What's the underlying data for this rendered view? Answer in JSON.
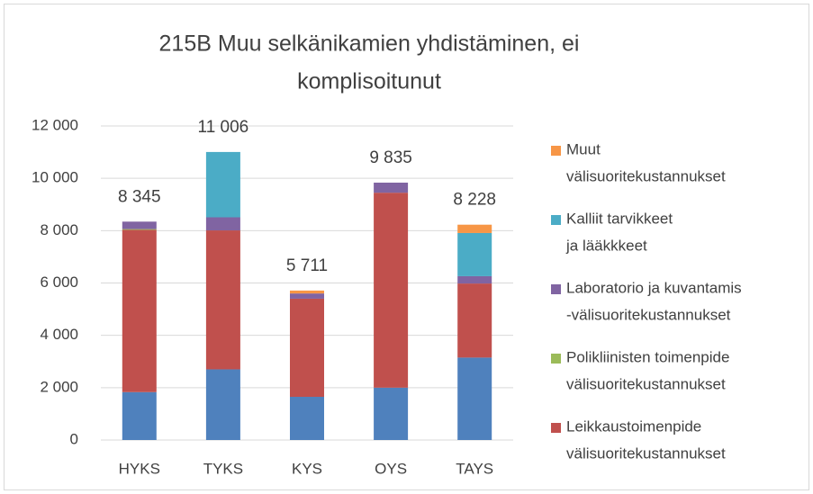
{
  "chart_data": {
    "type": "stacked_bar",
    "title": [
      "215B Muu selkänikamien yhdistäminen, ei",
      "komplisoitunut"
    ],
    "categories": [
      "HYKS",
      "TYKS",
      "KYS",
      "OYS",
      "TAYS"
    ],
    "series": [
      {
        "color": "#4f81bd",
        "values": [
          1830,
          2700,
          1650,
          2000,
          3150
        ]
      },
      {
        "name": [
          "Leikkaustoimenpide",
          "välisuoritekustannukset"
        ],
        "color": "#c0504d",
        "values": [
          6200,
          5310,
          3750,
          7450,
          2830
        ]
      },
      {
        "name": [
          "Polikliinisten toimenpide",
          "välisuoritekustannukset"
        ],
        "color": "#9bbb59",
        "values": [
          30,
          0,
          0,
          0,
          0
        ]
      },
      {
        "name": [
          "Laboratorio ja kuvantamis",
          "-välisuoritekustannukset"
        ],
        "color": "#8064a2",
        "values": [
          285,
          500,
          200,
          385,
          280
        ]
      },
      {
        "name": [
          "Kalliit tarvikkeet",
          "ja lääkkkeet"
        ],
        "color": "#4bacc6",
        "values": [
          0,
          2496,
          0,
          0,
          1650
        ]
      },
      {
        "name": [
          "Muut",
          "välisuoritekustannukset"
        ],
        "color": "#f79646",
        "values": [
          0,
          0,
          111,
          0,
          318
        ]
      }
    ],
    "totals": [
      8345,
      11006,
      5711,
      9835,
      8228
    ],
    "total_labels": [
      "8 345",
      "11 006",
      "5 711",
      "9 835",
      "8 228"
    ],
    "ylim": [
      0,
      12000
    ],
    "yticks": [
      0,
      {
        "value": 2000,
        "label": "2 000"
      },
      {
        "value": 4000,
        "label": "4 000"
      },
      {
        "value": 6000,
        "label": "6 000"
      },
      {
        "value": 8000,
        "label": "8 000"
      },
      {
        "value": 10000,
        "label": "10 000"
      },
      {
        "value": 12000,
        "label": "12 000"
      }
    ],
    "grid": true
  }
}
